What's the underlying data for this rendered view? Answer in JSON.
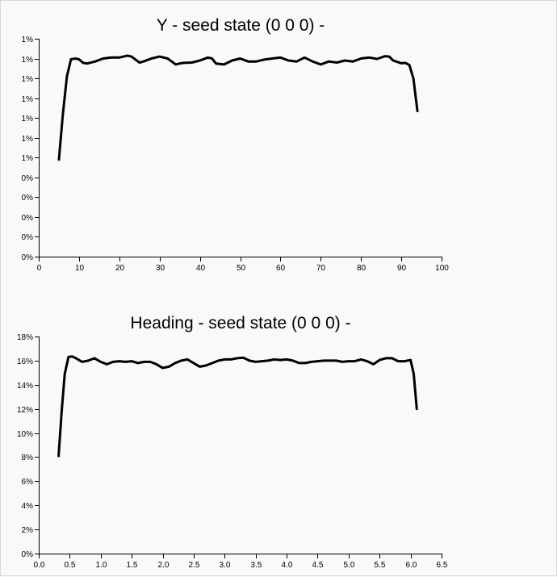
{
  "chart_data": [
    {
      "type": "line",
      "title": "Y - seed state (0 0 0) -",
      "xlim": [
        0,
        100
      ],
      "x_ticks": [
        0,
        10,
        20,
        30,
        40,
        50,
        60,
        70,
        80,
        90,
        100
      ],
      "x_tick_labels": [
        "0",
        "10",
        "20",
        "30",
        "40",
        "50",
        "60",
        "70",
        "80",
        "90",
        "100"
      ],
      "ylim": [
        0,
        1.1
      ],
      "y_ticks": [
        0,
        0.1,
        0.2,
        0.3,
        0.4,
        0.5,
        0.6,
        0.7,
        0.8,
        0.9,
        1.0,
        1.1
      ],
      "y_tick_labels": [
        "0%",
        "0%",
        "0%",
        "0%",
        "0%",
        "1%",
        "1%",
        "1%",
        "1%",
        "1%",
        "1%",
        "1%"
      ],
      "grid": false,
      "series": [
        {
          "x": [
            5,
            6,
            7,
            8,
            9,
            10,
            11,
            12,
            14,
            16,
            18,
            20,
            22,
            23,
            24,
            25,
            26,
            28,
            30,
            32,
            34,
            35,
            36,
            38,
            40,
            42,
            43,
            44,
            46,
            48,
            50,
            52,
            54,
            56,
            58,
            60,
            62,
            64,
            66,
            68,
            70,
            72,
            74,
            76,
            78,
            80,
            82,
            84,
            86,
            87,
            88,
            89,
            90,
            91,
            92,
            93,
            94
          ],
          "y": [
            0.49,
            0.72,
            0.91,
            0.996,
            1.0,
            0.996,
            0.978,
            0.975,
            0.985,
            1.0,
            1.005,
            1.005,
            1.015,
            1.01,
            0.995,
            0.98,
            0.985,
            1.0,
            1.01,
            1.0,
            0.97,
            0.975,
            0.978,
            0.98,
            0.99,
            1.005,
            1.0,
            0.975,
            0.97,
            0.99,
            1.0,
            0.985,
            0.985,
            0.995,
            1.0,
            1.005,
            0.99,
            0.985,
            1.005,
            0.985,
            0.97,
            0.985,
            0.98,
            0.99,
            0.985,
            1.0,
            1.005,
            0.998,
            1.012,
            1.01,
            0.99,
            0.983,
            0.976,
            0.978,
            0.967,
            0.9,
            0.735
          ]
        }
      ]
    },
    {
      "type": "line",
      "title": "Heading - seed state (0 0 0) -",
      "xlim": [
        0,
        6.5
      ],
      "x_ticks": [
        0,
        0.5,
        1.0,
        1.5,
        2.0,
        2.5,
        3.0,
        3.5,
        4.0,
        4.5,
        5.0,
        5.5,
        6.0,
        6.5
      ],
      "x_tick_labels": [
        "0.0",
        "0.5",
        "1.0",
        "1.5",
        "2.0",
        "2.5",
        "3.0",
        "3.5",
        "4.0",
        "4.5",
        "5.0",
        "5.5",
        "6.0",
        "6.5"
      ],
      "ylim": [
        0,
        18
      ],
      "y_ticks": [
        0,
        2,
        4,
        6,
        8,
        10,
        12,
        14,
        16,
        18
      ],
      "y_tick_labels": [
        "0%",
        "2%",
        "4%",
        "6%",
        "8%",
        "10%",
        "12%",
        "14%",
        "16%",
        "18%"
      ],
      "grid": false,
      "series": [
        {
          "x": [
            0.32,
            0.37,
            0.42,
            0.48,
            0.54,
            0.6,
            0.7,
            0.8,
            0.9,
            1.0,
            1.1,
            1.2,
            1.3,
            1.4,
            1.5,
            1.6,
            1.7,
            1.8,
            1.9,
            2.0,
            2.1,
            2.2,
            2.3,
            2.4,
            2.5,
            2.6,
            2.7,
            2.8,
            2.9,
            3.0,
            3.1,
            3.2,
            3.3,
            3.4,
            3.5,
            3.6,
            3.7,
            3.8,
            3.9,
            4.0,
            4.1,
            4.2,
            4.3,
            4.4,
            4.5,
            4.6,
            4.7,
            4.8,
            4.9,
            5.0,
            5.1,
            5.2,
            5.3,
            5.4,
            5.5,
            5.6,
            5.7,
            5.8,
            5.9,
            6.0,
            6.05,
            6.1
          ],
          "y": [
            8.1,
            11.8,
            14.9,
            16.3,
            16.35,
            16.2,
            15.9,
            16.0,
            16.2,
            15.9,
            15.7,
            15.9,
            15.95,
            15.9,
            15.95,
            15.8,
            15.9,
            15.9,
            15.7,
            15.4,
            15.5,
            15.8,
            16.0,
            16.1,
            15.8,
            15.5,
            15.6,
            15.8,
            16.0,
            16.1,
            16.1,
            16.2,
            16.25,
            16.0,
            15.9,
            15.95,
            16.0,
            16.1,
            16.05,
            16.1,
            16.0,
            15.8,
            15.8,
            15.9,
            15.95,
            16.0,
            16.0,
            16.0,
            15.9,
            15.95,
            15.95,
            16.1,
            15.95,
            15.7,
            16.05,
            16.2,
            16.2,
            15.95,
            15.95,
            16.05,
            14.9,
            12.0
          ]
        }
      ]
    }
  ]
}
